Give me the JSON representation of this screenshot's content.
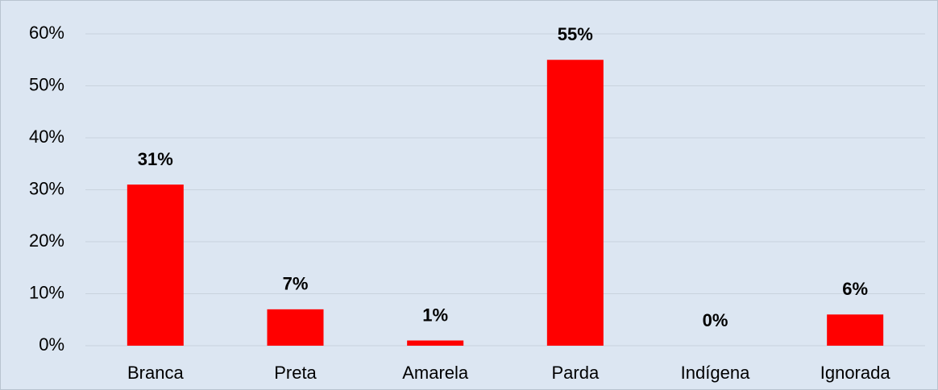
{
  "chart_data": {
    "type": "bar",
    "categories": [
      "Branca",
      "Preta",
      "Amarela",
      "Parda",
      "Indígena",
      "Ignorada"
    ],
    "values": [
      31,
      7,
      1,
      55,
      0,
      6
    ],
    "value_labels": [
      "31%",
      "7%",
      "1%",
      "55%",
      "0%",
      "6%"
    ],
    "color": "#ff0000",
    "ylim": [
      0,
      60
    ],
    "yticks": [
      {
        "value": 0,
        "label": "0%"
      },
      {
        "value": 10,
        "label": "10%"
      },
      {
        "value": 20,
        "label": "20%"
      },
      {
        "value": 30,
        "label": "30%"
      },
      {
        "value": 40,
        "label": "40%"
      },
      {
        "value": 50,
        "label": "50%"
      },
      {
        "value": 60,
        "label": "60%"
      }
    ],
    "grid": true
  }
}
